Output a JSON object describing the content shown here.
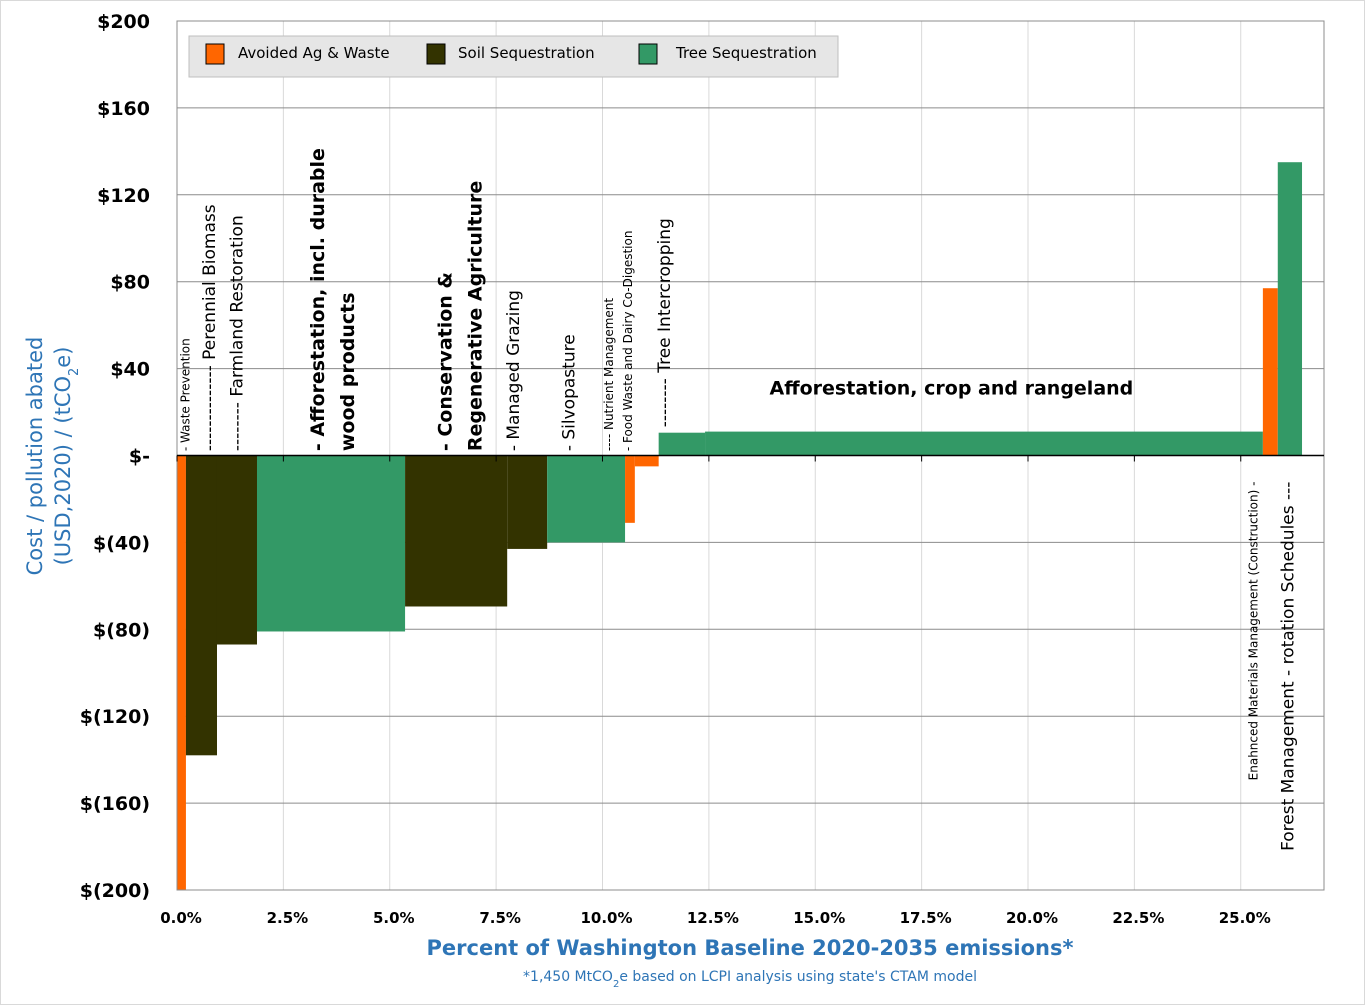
{
  "chart_data": {
    "type": "bar",
    "subtype": "marginal-abatement-cost-curve (variable-width bars)",
    "title": "",
    "xlabel": "Percent of Washington Baseline 2020-2035 emissions*",
    "xlabel_note": "*1,450 MtCO2e based on LCPI analysis using state's CTAM model",
    "ylabel_line1": "Cost / pollution abated",
    "ylabel_line2": "(USD,2020)  / (tCO2e)",
    "xlim": [
      0,
      27
    ],
    "ylim": [
      -200,
      200
    ],
    "x_ticks": [
      0,
      2.5,
      5,
      7.5,
      10,
      12.5,
      15,
      17.5,
      20,
      22.5,
      25
    ],
    "x_tick_labels": [
      "0.0%",
      "2.5%",
      "5.0%",
      "7.5%",
      "10.0%",
      "12.5%",
      "15.0%",
      "17.5%",
      "20.0%",
      "22.5%",
      "25.0%"
    ],
    "y_ticks": [
      200,
      160,
      120,
      80,
      40,
      0,
      -40,
      -80,
      -120,
      -160,
      -200
    ],
    "y_tick_labels": [
      "$200",
      "$160",
      "$120",
      "$80",
      "$40",
      "$-",
      "$(40)",
      "$(80)",
      "$(120)",
      "$(160)",
      "$(200)"
    ],
    "grid": true,
    "legend_position": "top-left",
    "series": [
      {
        "name": "Avoided Ag & Waste",
        "color": "#ff6600"
      },
      {
        "name": "Soil Sequestration",
        "color": "#333300"
      },
      {
        "name": "Tree Sequestration",
        "color": "#339966"
      }
    ],
    "bars": [
      {
        "series": "Avoided Ag & Waste",
        "x_start": 0.0,
        "x_end": 0.21,
        "value": -200
      },
      {
        "series": "Soil Sequestration",
        "x_start": 0.21,
        "x_end": 0.94,
        "value": -138
      },
      {
        "series": "Soil Sequestration",
        "x_start": 0.94,
        "x_end": 1.88,
        "value": -87
      },
      {
        "series": "Tree Sequestration",
        "x_start": 1.88,
        "x_end": 5.36,
        "value": -81
      },
      {
        "series": "Soil Sequestration",
        "x_start": 5.36,
        "x_end": 7.76,
        "value": -69.5
      },
      {
        "series": "Soil Sequestration",
        "x_start": 7.76,
        "x_end": 8.7,
        "value": -43
      },
      {
        "series": "Tree Sequestration",
        "x_start": 8.7,
        "x_end": 10.53,
        "value": -40
      },
      {
        "series": "Avoided Ag & Waste",
        "x_start": 10.53,
        "x_end": 10.76,
        "value": -31
      },
      {
        "series": "Avoided Ag & Waste",
        "x_start": 10.76,
        "x_end": 11.32,
        "value": -5
      },
      {
        "series": "Tree Sequestration",
        "x_start": 11.32,
        "x_end": 12.41,
        "value": 10.5
      },
      {
        "series": "Tree Sequestration",
        "x_start": 12.41,
        "x_end": 25.52,
        "value": 11
      },
      {
        "series": "Avoided Ag & Waste",
        "x_start": 25.52,
        "x_end": 25.87,
        "value": 77
      },
      {
        "series": "Tree Sequestration",
        "x_start": 25.87,
        "x_end": 26.44,
        "value": 135
      }
    ],
    "annotations": [
      {
        "text": "- Waste Prevention",
        "x": 0.2,
        "anchor_y": 2,
        "rotation": -90,
        "size": "small"
      },
      {
        "text": "--------------  Perennial Biomass",
        "x": 0.75,
        "anchor_y": 2,
        "rotation": -90,
        "size": "medium"
      },
      {
        "text": "--------  Farmland Restoration",
        "x": 1.4,
        "anchor_y": 2,
        "rotation": -90,
        "size": "medium"
      },
      {
        "text": "-  Afforestation, incl. durable",
        "x": 3.3,
        "anchor_y": 2,
        "rotation": -90,
        "size": "large",
        "bold": true
      },
      {
        "text": "wood products",
        "x": 4.0,
        "anchor_y": 2,
        "rotation": -90,
        "size": "large",
        "bold": true
      },
      {
        "text": "-  Conservation &",
        "x": 6.3,
        "anchor_y": 2,
        "rotation": -90,
        "size": "large",
        "bold": true
      },
      {
        "text": "Regenerative Agriculture",
        "x": 7.0,
        "anchor_y": 2,
        "rotation": -90,
        "size": "large",
        "bold": true
      },
      {
        "text": "- Managed Grazing",
        "x": 7.9,
        "anchor_y": 2,
        "rotation": -90,
        "size": "medium"
      },
      {
        "text": "- Silvopasture",
        "x": 9.2,
        "anchor_y": 2,
        "rotation": -90,
        "size": "medium"
      },
      {
        "text": "---- Nutrient Management",
        "x": 10.15,
        "anchor_y": 2,
        "rotation": -90,
        "size": "small"
      },
      {
        "text": "- Food Waste and Dairy Co-Digestion",
        "x": 10.6,
        "anchor_y": 2,
        "rotation": -90,
        "size": "small"
      },
      {
        "text": "--------  Tree Intercropping",
        "x": 11.45,
        "anchor_y": 13,
        "rotation": -90,
        "size": "medium"
      },
      {
        "text": "Afforestation, crop and rangeland",
        "x": 18.2,
        "anchor_y": 28,
        "rotation": 0,
        "size": "large",
        "bold": true
      },
      {
        "text": "Enahnced Materials Management (Construction) -",
        "x": 25.3,
        "anchor_y": -12,
        "rotation": -90,
        "size": "small",
        "align": "end"
      },
      {
        "text": "Forest Management - rotation Schedules ---",
        "x": 26.1,
        "anchor_y": -12,
        "rotation": -90,
        "size": "medium",
        "align": "end"
      }
    ]
  }
}
